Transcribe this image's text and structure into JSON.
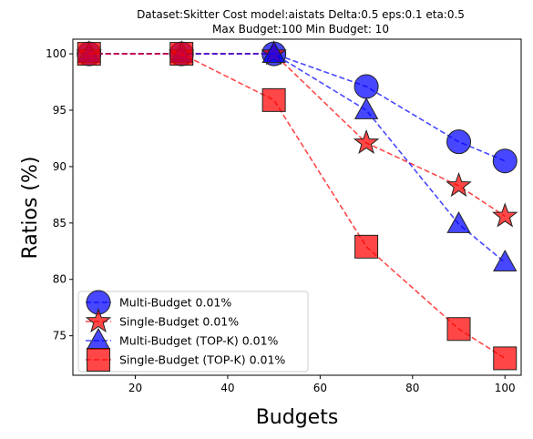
{
  "chart_data": {
    "type": "line",
    "title_line1": "Dataset:Skitter Cost model:aistats Delta:0.5 eps:0.1 eta:0.5",
    "title_line2": "Max Budget:100 Min Budget: 10",
    "xlabel": "Budgets",
    "ylabel": "Ratios (%)",
    "xlim": [
      6.5,
      103.5
    ],
    "ylim": [
      71.5,
      101.3
    ],
    "xticks": [
      20,
      40,
      60,
      80,
      100
    ],
    "yticks": [
      75,
      80,
      85,
      90,
      95,
      100
    ],
    "x": [
      10,
      30,
      50,
      70,
      90,
      100
    ],
    "legend_position": "lower-left",
    "series": [
      {
        "name": "Multi-Budget 0.01%",
        "marker": "circle",
        "color": "#0000ff",
        "values": [
          100,
          100,
          100,
          97.1,
          92.2,
          90.5
        ]
      },
      {
        "name": "Single-Budget 0.01%",
        "marker": "star",
        "color": "#ff0000",
        "values": [
          100,
          100,
          100,
          92.1,
          88.3,
          85.6
        ]
      },
      {
        "name": "Multi-Budget (TOP-K) 0.01%",
        "marker": "triangle",
        "color": "#0000ff",
        "values": [
          100,
          100,
          100,
          95.0,
          84.9,
          81.5
        ]
      },
      {
        "name": "Single-Budget (TOP-K) 0.01%",
        "marker": "square",
        "color": "#ff0000",
        "values": [
          100,
          100,
          95.9,
          82.9,
          75.6,
          73.0
        ]
      }
    ]
  }
}
